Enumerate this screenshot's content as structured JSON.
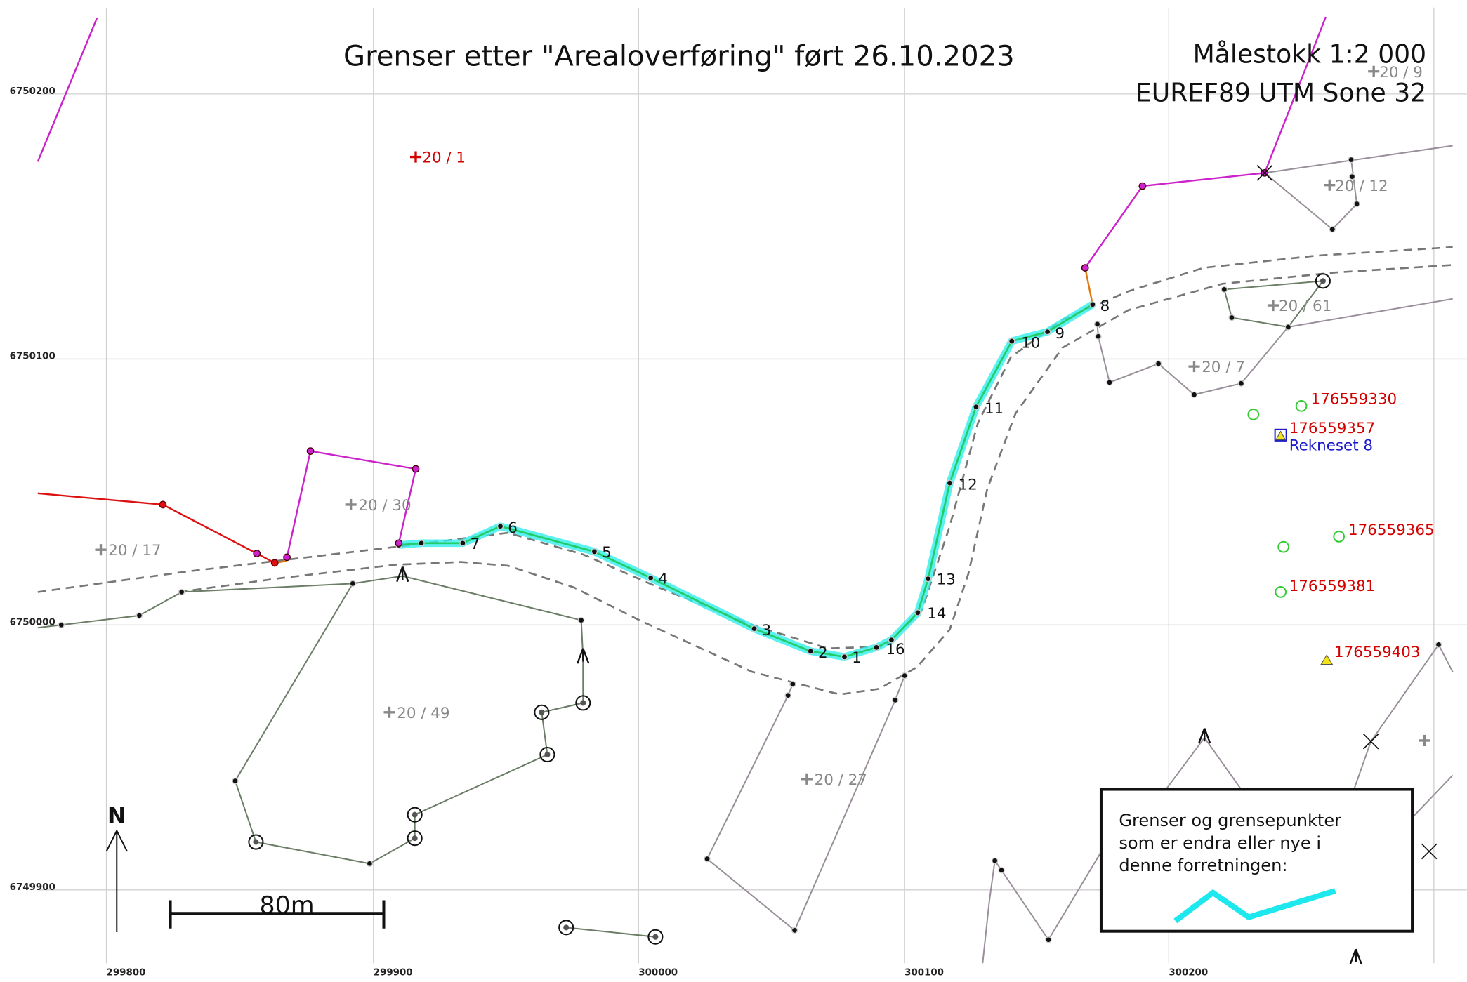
{
  "title": "Grenser etter \"Arealoverføring\" ført 26.10.2023",
  "scale": "Målestokk 1:2 000",
  "projection": "EUREF89 UTM Sone 32",
  "grid_x": [
    "299800",
    "299900",
    "300000",
    "300100",
    "300200"
  ],
  "grid_y": [
    "6750200",
    "6750100",
    "6750000",
    "6749900"
  ],
  "parcels": [
    "20 / 9",
    "20 / 12",
    "20 / 61",
    "20 / 7",
    "20 / 30",
    "20 / 17",
    "20 / 49",
    "20 / 27"
  ],
  "parcel_red": "20 / 1",
  "boundary_points": [
    "7",
    "6",
    "5",
    "4",
    "3",
    "2",
    "1",
    "16",
    "14",
    "13",
    "12",
    "11",
    "10",
    "9",
    "8"
  ],
  "ids": [
    "176559330",
    "176559357",
    "176559365",
    "176559381",
    "176559403"
  ],
  "address": "Rekneset 8",
  "legend": {
    "lines": [
      "Grenser og grensepunkter",
      "som er endra eller nye i",
      "denne forretningen:"
    ]
  },
  "scale_bar": "80m",
  "north": "N"
}
